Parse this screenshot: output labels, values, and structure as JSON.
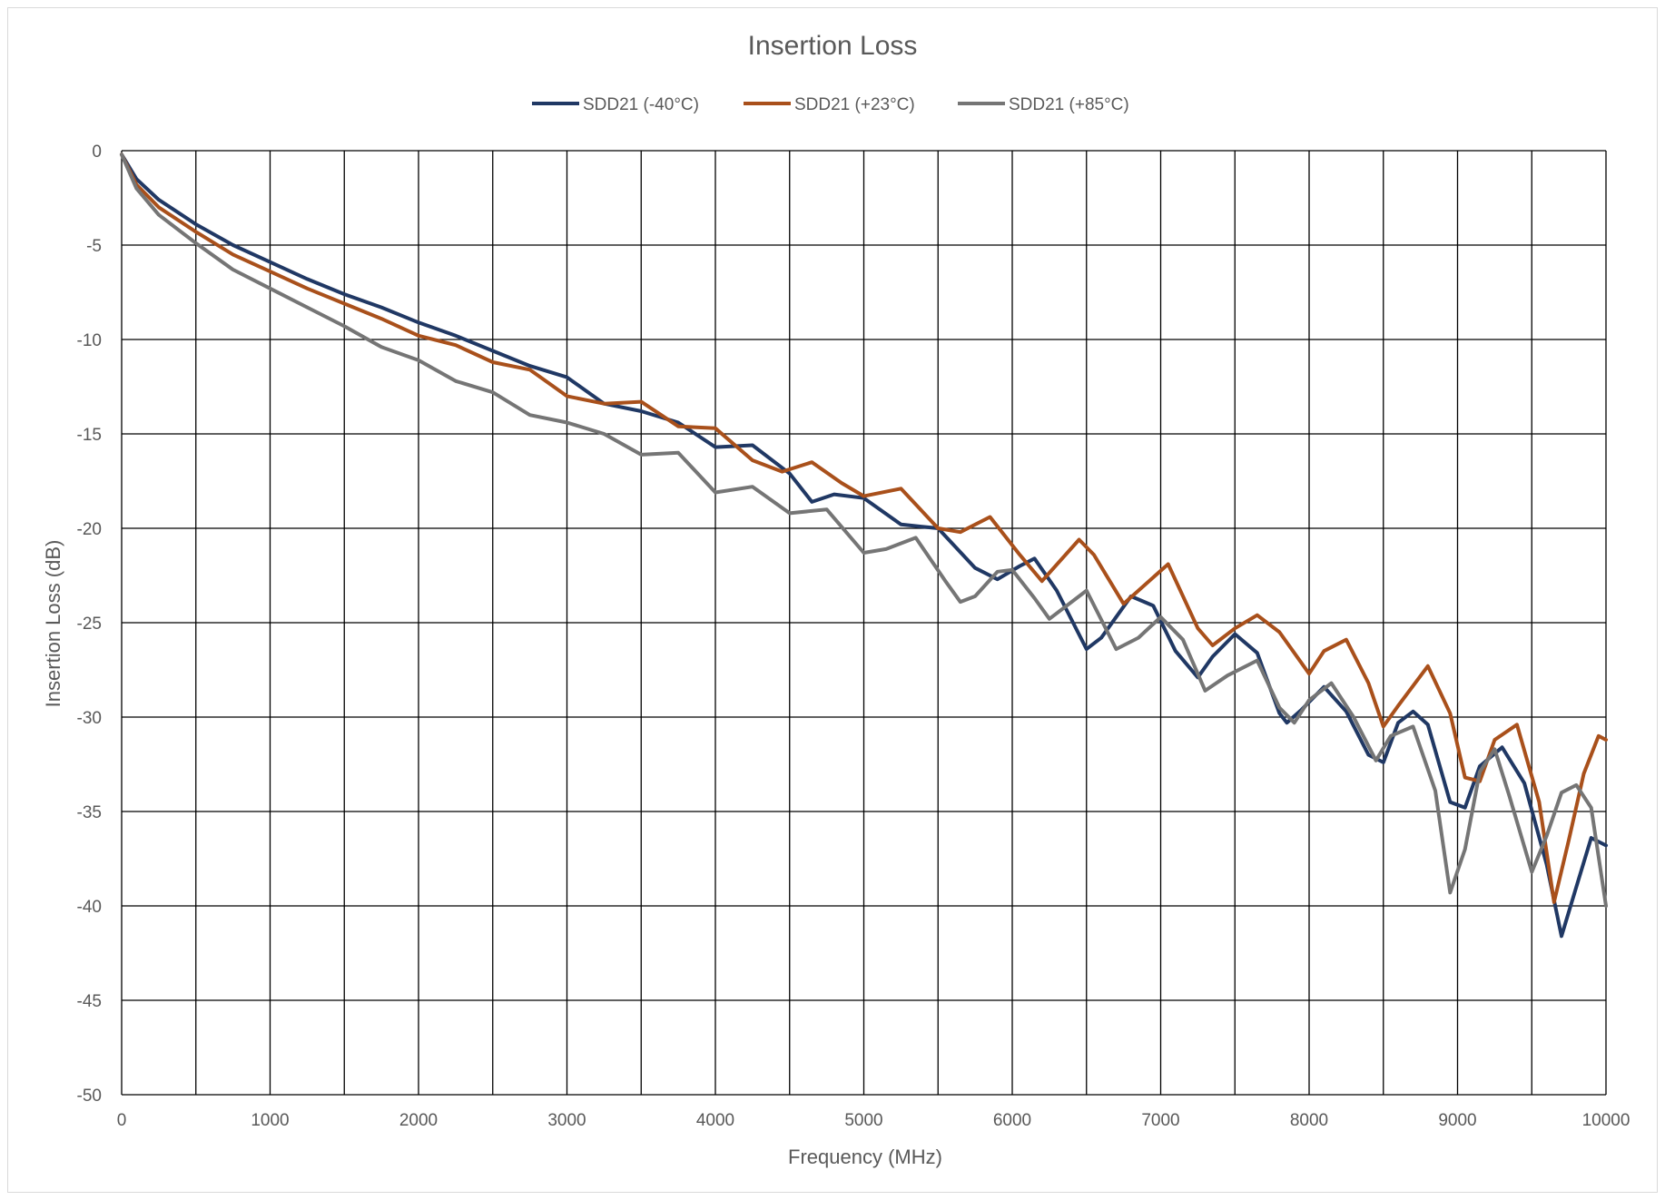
{
  "chart_data": {
    "type": "line",
    "title": "Insertion Loss",
    "xlabel": "Frequency (MHz)",
    "ylabel": "Insertion Loss (dB)",
    "xlim": [
      0,
      10000
    ],
    "ylim": [
      -50,
      0
    ],
    "xticks": [
      0,
      1000,
      2000,
      3000,
      4000,
      5000,
      6000,
      7000,
      8000,
      9000,
      10000
    ],
    "yticks": [
      0,
      -5,
      -10,
      -15,
      -20,
      -25,
      -30,
      -35,
      -40,
      -45,
      -50
    ],
    "grid": true,
    "legend_position": "top",
    "series": [
      {
        "name": "SDD21 (-40°C)",
        "color": "#203864",
        "points": [
          [
            0,
            -0.2
          ],
          [
            100,
            -1.5
          ],
          [
            250,
            -2.6
          ],
          [
            500,
            -3.9
          ],
          [
            750,
            -5.0
          ],
          [
            1000,
            -5.9
          ],
          [
            1250,
            -6.8
          ],
          [
            1500,
            -7.6
          ],
          [
            1750,
            -8.3
          ],
          [
            2000,
            -9.1
          ],
          [
            2250,
            -9.8
          ],
          [
            2500,
            -10.6
          ],
          [
            2750,
            -11.4
          ],
          [
            3000,
            -12.0
          ],
          [
            3250,
            -13.4
          ],
          [
            3500,
            -13.8
          ],
          [
            3750,
            -14.4
          ],
          [
            4000,
            -15.7
          ],
          [
            4250,
            -15.6
          ],
          [
            4500,
            -17.1
          ],
          [
            4650,
            -18.6
          ],
          [
            4800,
            -18.2
          ],
          [
            5000,
            -18.4
          ],
          [
            5250,
            -19.8
          ],
          [
            5500,
            -20.0
          ],
          [
            5750,
            -22.1
          ],
          [
            5900,
            -22.7
          ],
          [
            6050,
            -22.0
          ],
          [
            6150,
            -21.6
          ],
          [
            6300,
            -23.3
          ],
          [
            6500,
            -26.4
          ],
          [
            6600,
            -25.8
          ],
          [
            6800,
            -23.6
          ],
          [
            6950,
            -24.1
          ],
          [
            7100,
            -26.5
          ],
          [
            7250,
            -27.9
          ],
          [
            7350,
            -26.8
          ],
          [
            7500,
            -25.6
          ],
          [
            7650,
            -26.6
          ],
          [
            7800,
            -29.8
          ],
          [
            7850,
            -30.3
          ],
          [
            7950,
            -29.6
          ],
          [
            8100,
            -28.4
          ],
          [
            8250,
            -29.7
          ],
          [
            8400,
            -32.0
          ],
          [
            8500,
            -32.4
          ],
          [
            8600,
            -30.3
          ],
          [
            8700,
            -29.7
          ],
          [
            8800,
            -30.4
          ],
          [
            8950,
            -34.5
          ],
          [
            9050,
            -34.8
          ],
          [
            9150,
            -32.6
          ],
          [
            9300,
            -31.6
          ],
          [
            9450,
            -33.5
          ],
          [
            9600,
            -37.8
          ],
          [
            9700,
            -41.6
          ],
          [
            9800,
            -39.0
          ],
          [
            9900,
            -36.4
          ],
          [
            10000,
            -36.8
          ]
        ]
      },
      {
        "name": "SDD21 (+23°C)",
        "color": "#a9501b",
        "points": [
          [
            0,
            -0.2
          ],
          [
            100,
            -1.8
          ],
          [
            250,
            -3.0
          ],
          [
            500,
            -4.3
          ],
          [
            750,
            -5.5
          ],
          [
            1000,
            -6.4
          ],
          [
            1250,
            -7.3
          ],
          [
            1500,
            -8.1
          ],
          [
            1750,
            -8.9
          ],
          [
            2000,
            -9.8
          ],
          [
            2250,
            -10.3
          ],
          [
            2500,
            -11.2
          ],
          [
            2750,
            -11.6
          ],
          [
            3000,
            -13.0
          ],
          [
            3250,
            -13.4
          ],
          [
            3500,
            -13.3
          ],
          [
            3750,
            -14.6
          ],
          [
            4000,
            -14.7
          ],
          [
            4250,
            -16.4
          ],
          [
            4450,
            -17.0
          ],
          [
            4650,
            -16.5
          ],
          [
            4850,
            -17.6
          ],
          [
            5000,
            -18.3
          ],
          [
            5250,
            -17.9
          ],
          [
            5500,
            -20.0
          ],
          [
            5650,
            -20.2
          ],
          [
            5850,
            -19.4
          ],
          [
            6050,
            -21.4
          ],
          [
            6200,
            -22.8
          ],
          [
            6450,
            -20.6
          ],
          [
            6550,
            -21.4
          ],
          [
            6750,
            -24.0
          ],
          [
            7050,
            -21.9
          ],
          [
            7250,
            -25.3
          ],
          [
            7350,
            -26.2
          ],
          [
            7500,
            -25.3
          ],
          [
            7650,
            -24.6
          ],
          [
            7800,
            -25.5
          ],
          [
            8000,
            -27.7
          ],
          [
            8100,
            -26.5
          ],
          [
            8250,
            -25.9
          ],
          [
            8400,
            -28.2
          ],
          [
            8500,
            -30.5
          ],
          [
            8600,
            -29.4
          ],
          [
            8800,
            -27.3
          ],
          [
            8950,
            -29.8
          ],
          [
            9050,
            -33.2
          ],
          [
            9150,
            -33.4
          ],
          [
            9250,
            -31.2
          ],
          [
            9400,
            -30.4
          ],
          [
            9550,
            -34.5
          ],
          [
            9650,
            -39.8
          ],
          [
            9750,
            -36.5
          ],
          [
            9850,
            -33.0
          ],
          [
            9950,
            -31.0
          ],
          [
            10000,
            -31.2
          ]
        ]
      },
      {
        "name": "SDD21  (+85°C)",
        "color": "#757575",
        "points": [
          [
            0,
            -0.2
          ],
          [
            100,
            -2.0
          ],
          [
            250,
            -3.4
          ],
          [
            500,
            -4.9
          ],
          [
            750,
            -6.3
          ],
          [
            1000,
            -7.3
          ],
          [
            1250,
            -8.3
          ],
          [
            1500,
            -9.3
          ],
          [
            1750,
            -10.4
          ],
          [
            2000,
            -11.1
          ],
          [
            2250,
            -12.2
          ],
          [
            2500,
            -12.8
          ],
          [
            2750,
            -14.0
          ],
          [
            3000,
            -14.4
          ],
          [
            3250,
            -15.0
          ],
          [
            3500,
            -16.1
          ],
          [
            3750,
            -16.0
          ],
          [
            4000,
            -18.1
          ],
          [
            4250,
            -17.8
          ],
          [
            4500,
            -19.2
          ],
          [
            4750,
            -19.0
          ],
          [
            5000,
            -21.3
          ],
          [
            5150,
            -21.1
          ],
          [
            5350,
            -20.5
          ],
          [
            5550,
            -22.8
          ],
          [
            5650,
            -23.9
          ],
          [
            5750,
            -23.6
          ],
          [
            5900,
            -22.3
          ],
          [
            6000,
            -22.2
          ],
          [
            6150,
            -23.7
          ],
          [
            6250,
            -24.8
          ],
          [
            6500,
            -23.3
          ],
          [
            6700,
            -26.4
          ],
          [
            6850,
            -25.8
          ],
          [
            7000,
            -24.7
          ],
          [
            7150,
            -25.9
          ],
          [
            7300,
            -28.6
          ],
          [
            7450,
            -27.8
          ],
          [
            7650,
            -27.0
          ],
          [
            7800,
            -29.5
          ],
          [
            7900,
            -30.3
          ],
          [
            8000,
            -29.1
          ],
          [
            8150,
            -28.2
          ],
          [
            8300,
            -30.0
          ],
          [
            8450,
            -32.3
          ],
          [
            8550,
            -31.0
          ],
          [
            8700,
            -30.5
          ],
          [
            8850,
            -33.9
          ],
          [
            8950,
            -39.3
          ],
          [
            9050,
            -37.0
          ],
          [
            9150,
            -32.9
          ],
          [
            9250,
            -31.7
          ],
          [
            9350,
            -34.2
          ],
          [
            9500,
            -38.2
          ],
          [
            9600,
            -36.3
          ],
          [
            9700,
            -34.0
          ],
          [
            9800,
            -33.6
          ],
          [
            9900,
            -34.8
          ],
          [
            10000,
            -40.0
          ]
        ]
      }
    ]
  }
}
